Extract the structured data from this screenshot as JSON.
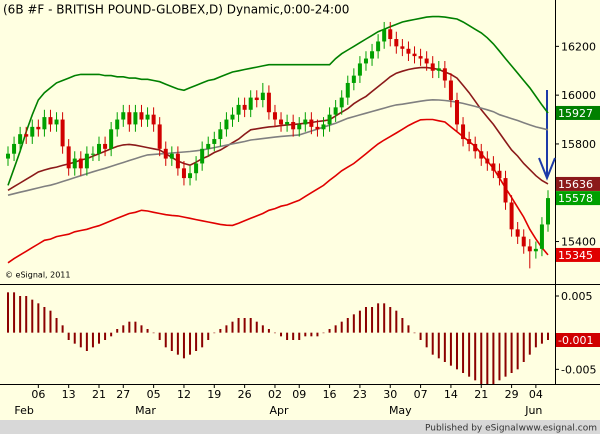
{
  "chart_data": [
    {
      "type": "candlestick",
      "title": "(6B #F - BRITISH POUND-GLOBEX,D) Dynamic,0:00-24:00",
      "watermark": "© eSignal, 2011",
      "categories": [
        null,
        null,
        null,
        null,
        null,
        "06",
        null,
        null,
        null,
        null,
        "13",
        null,
        null,
        null,
        null,
        "21",
        null,
        null,
        null,
        "27",
        null,
        null,
        null,
        null,
        "05",
        null,
        null,
        null,
        null,
        "12",
        null,
        null,
        null,
        null,
        "19",
        null,
        null,
        null,
        null,
        "26",
        null,
        null,
        null,
        null,
        "02",
        null,
        null,
        null,
        "09",
        null,
        null,
        null,
        null,
        "16",
        null,
        null,
        null,
        null,
        "23",
        null,
        null,
        null,
        null,
        "30",
        null,
        null,
        null,
        null,
        "07",
        null,
        null,
        null,
        null,
        "14",
        null,
        null,
        null,
        null,
        "21",
        null,
        null,
        null,
        null,
        "29",
        null,
        null,
        null,
        "04",
        null,
        null
      ],
      "month_categories": [
        null,
        null,
        "Feb",
        null,
        null,
        null,
        null,
        null,
        null,
        null,
        null,
        null,
        null,
        null,
        null,
        null,
        null,
        null,
        null,
        null,
        null,
        null,
        "Mar",
        null,
        null,
        null,
        null,
        null,
        null,
        null,
        null,
        null,
        null,
        null,
        null,
        null,
        null,
        null,
        null,
        null,
        null,
        null,
        null,
        null,
        "Apr",
        null,
        null,
        null,
        null,
        null,
        null,
        null,
        null,
        null,
        null,
        null,
        null,
        null,
        null,
        null,
        null,
        null,
        null,
        null,
        "May",
        null,
        null,
        null,
        null,
        null,
        null,
        null,
        null,
        null,
        null,
        null,
        null,
        null,
        null,
        null,
        null,
        null,
        null,
        null,
        null,
        null,
        "Jun",
        null,
        null,
        null
      ],
      "open": [
        15740,
        15760,
        15800,
        15840,
        15830,
        15870,
        15860,
        15910,
        15880,
        15900,
        15790,
        15700,
        15740,
        15700,
        15760,
        15760,
        15800,
        15780,
        15860,
        15900,
        15930,
        15880,
        15930,
        15900,
        15920,
        15880,
        15780,
        15740,
        15760,
        15700,
        15660,
        15680,
        15720,
        15780,
        15800,
        15820,
        15860,
        15900,
        15920,
        15960,
        15940,
        15990,
        15980,
        16010,
        15930,
        15900,
        15880,
        15890,
        15860,
        15880,
        15900,
        15870,
        15860,
        15880,
        15920,
        15950,
        15990,
        16050,
        16080,
        16130,
        16150,
        16180,
        16220,
        16270,
        16230,
        16200,
        16190,
        16170,
        16160,
        16150,
        16130,
        16100,
        16110,
        16060,
        15980,
        15880,
        15820,
        15800,
        15770,
        15740,
        15720,
        15690,
        15660,
        15560,
        15450,
        15420,
        15380,
        15360,
        15370,
        15470
      ],
      "high": [
        15790,
        15830,
        15870,
        15870,
        15900,
        15900,
        15940,
        15940,
        15930,
        15930,
        15820,
        15770,
        15770,
        15790,
        15790,
        15830,
        15830,
        15890,
        15930,
        15960,
        15960,
        15960,
        15960,
        15950,
        15950,
        15910,
        15810,
        15790,
        15790,
        15730,
        15710,
        15750,
        15810,
        15830,
        15850,
        15890,
        15930,
        15950,
        15990,
        15990,
        16020,
        16020,
        16050,
        16040,
        15960,
        15930,
        15920,
        15920,
        15910,
        15930,
        15930,
        15900,
        15910,
        15950,
        15980,
        16020,
        16080,
        16110,
        16160,
        16180,
        16210,
        16250,
        16300,
        16300,
        16260,
        16230,
        16220,
        16200,
        16190,
        16180,
        16160,
        16140,
        16140,
        16090,
        16010,
        15910,
        15850,
        15830,
        15800,
        15770,
        15750,
        15720,
        15690,
        15590,
        15480,
        15450,
        15410,
        15400,
        15500,
        15610
      ],
      "low": [
        15710,
        15730,
        15770,
        15800,
        15800,
        15830,
        15830,
        15850,
        15850,
        15760,
        15670,
        15670,
        15670,
        15670,
        15730,
        15730,
        15750,
        15750,
        15830,
        15870,
        15850,
        15850,
        15870,
        15870,
        15850,
        15750,
        15710,
        15710,
        15670,
        15630,
        15630,
        15650,
        15690,
        15750,
        15770,
        15790,
        15830,
        15870,
        15890,
        15910,
        15910,
        15950,
        15950,
        15900,
        15870,
        15850,
        15850,
        15830,
        15830,
        15850,
        15840,
        15830,
        15830,
        15850,
        15890,
        15920,
        15960,
        16020,
        16050,
        16100,
        16120,
        16150,
        16190,
        16200,
        16170,
        16160,
        16140,
        16130,
        16120,
        16100,
        16070,
        16070,
        16030,
        15950,
        15850,
        15790,
        15770,
        15740,
        15710,
        15690,
        15660,
        15630,
        15530,
        15420,
        15390,
        15350,
        15290,
        15330,
        15340,
        15440
      ],
      "close": [
        15760,
        15800,
        15840,
        15830,
        15870,
        15860,
        15910,
        15880,
        15900,
        15790,
        15700,
        15740,
        15700,
        15760,
        15760,
        15800,
        15780,
        15860,
        15900,
        15930,
        15880,
        15930,
        15900,
        15920,
        15880,
        15780,
        15740,
        15760,
        15700,
        15660,
        15680,
        15720,
        15780,
        15800,
        15820,
        15860,
        15900,
        15920,
        15960,
        15940,
        15990,
        15980,
        16010,
        15930,
        15900,
        15880,
        15890,
        15860,
        15880,
        15900,
        15870,
        15860,
        15880,
        15920,
        15950,
        15990,
        16050,
        16080,
        16130,
        16150,
        16180,
        16220,
        16270,
        16230,
        16200,
        16190,
        16170,
        16160,
        16150,
        16130,
        16100,
        16110,
        16060,
        15980,
        15880,
        15820,
        15800,
        15770,
        15740,
        15720,
        15690,
        15660,
        15560,
        15450,
        15420,
        15380,
        15360,
        15370,
        15470,
        15578
      ],
      "up_color": "#00a000",
      "down_color": "#d00000",
      "series": [
        {
          "color": "#008000",
          "values": [
            15630,
            15700,
            15770,
            15850,
            15920,
            15980,
            16010,
            16030,
            16050,
            16060,
            16070,
            16080,
            16085,
            16085,
            16085,
            16085,
            16080,
            16080,
            16075,
            16075,
            16070,
            16070,
            16065,
            16065,
            16060,
            16055,
            16045,
            16035,
            16025,
            16020,
            16030,
            16040,
            16050,
            16060,
            16065,
            16075,
            16085,
            16095,
            16100,
            16105,
            16110,
            16115,
            16120,
            16125,
            16125,
            16125,
            16125,
            16125,
            16125,
            16125,
            16125,
            16125,
            16125,
            16125,
            16150,
            16170,
            16185,
            16200,
            16215,
            16230,
            16245,
            16260,
            16270,
            16280,
            16290,
            16300,
            16305,
            16310,
            16315,
            16320,
            16322,
            16322,
            16320,
            16316,
            16312,
            16300,
            16285,
            16270,
            16255,
            16235,
            16210,
            16180,
            16150,
            16120,
            16090,
            16060,
            16030,
            15995,
            15960,
            15927
          ]
        },
        {
          "color": "#e00000",
          "values": [
            15313,
            15330,
            15345,
            15360,
            15375,
            15390,
            15405,
            15410,
            15420,
            15425,
            15430,
            15440,
            15445,
            15450,
            15458,
            15465,
            15475,
            15485,
            15495,
            15505,
            15515,
            15520,
            15528,
            15525,
            15520,
            15515,
            15510,
            15507,
            15505,
            15500,
            15495,
            15490,
            15485,
            15480,
            15475,
            15470,
            15467,
            15466,
            15475,
            15485,
            15495,
            15505,
            15515,
            15528,
            15535,
            15545,
            15550,
            15560,
            15569,
            15585,
            15600,
            15615,
            15630,
            15651,
            15670,
            15690,
            15705,
            15720,
            15740,
            15760,
            15780,
            15800,
            15816,
            15830,
            15845,
            15860,
            15875,
            15888,
            15899,
            15900,
            15900,
            15895,
            15890,
            15870,
            15850,
            15830,
            15810,
            15790,
            15760,
            15730,
            15700,
            15660,
            15620,
            15580,
            15540,
            15500,
            15450,
            15410,
            15375,
            15345
          ]
        },
        {
          "color": "#8b1a1a",
          "values": [
            15610,
            15625,
            15640,
            15655,
            15670,
            15685,
            15693,
            15700,
            15705,
            15712,
            15718,
            15725,
            15734,
            15740,
            15750,
            15760,
            15770,
            15780,
            15790,
            15796,
            15798,
            15795,
            15790,
            15785,
            15780,
            15775,
            15760,
            15745,
            15730,
            15720,
            15713,
            15725,
            15740,
            15750,
            15765,
            15775,
            15790,
            15805,
            15820,
            15840,
            15858,
            15862,
            15866,
            15870,
            15872,
            15875,
            15878,
            15880,
            15882,
            15885,
            15888,
            15892,
            15895,
            15899,
            15915,
            15930,
            15945,
            15965,
            15981,
            15995,
            16015,
            16035,
            16055,
            16075,
            16090,
            16098,
            16105,
            16110,
            16113,
            16113,
            16110,
            16105,
            16095,
            16085,
            16070,
            16040,
            16010,
            15975,
            15940,
            15910,
            15880,
            15845,
            15810,
            15775,
            15750,
            15720,
            15695,
            15670,
            15650,
            15636
          ]
        },
        {
          "color": "#808080",
          "show_last": false,
          "values": [
            15590,
            15596,
            15602,
            15608,
            15614,
            15620,
            15626,
            15631,
            15638,
            15646,
            15654,
            15662,
            15670,
            15678,
            15686,
            15693,
            15700,
            15708,
            15716,
            15724,
            15732,
            15740,
            15748,
            15755,
            15757,
            15759,
            15761,
            15763,
            15765,
            15767,
            15769,
            15772,
            15775,
            15780,
            15785,
            15790,
            15795,
            15800,
            15805,
            15810,
            15816,
            15819,
            15822,
            15825,
            15828,
            15831,
            15833,
            15835,
            15837,
            15845,
            15853,
            15861,
            15869,
            15877,
            15885,
            15895,
            15905,
            15912,
            15919,
            15926,
            15933,
            15940,
            15947,
            15954,
            15960,
            15963,
            15967,
            15971,
            15975,
            15979,
            15981,
            15980,
            15978,
            15975,
            15971,
            15966,
            15960,
            15954,
            15947,
            15940,
            15932,
            15920,
            15912,
            15904,
            15896,
            15887,
            15878,
            15870,
            15864,
            15858
          ]
        }
      ],
      "ylim": [
        15230,
        16390
      ],
      "yticks": [
        15400,
        15800,
        16000,
        16200
      ]
    },
    {
      "type": "bar",
      "color": "#8b0000",
      "last_label_color": "#d00000",
      "values": [
        0.0055,
        0.0055,
        0.005,
        0.005,
        0.0045,
        0.004,
        0.0035,
        0.003,
        0.002,
        0.001,
        -0.001,
        -0.0015,
        -0.002,
        -0.0025,
        -0.002,
        -0.0015,
        -0.001,
        -0.0005,
        0.0005,
        0.001,
        0.0015,
        0.0015,
        0.001,
        0.0005,
        0,
        -0.001,
        -0.002,
        -0.0025,
        -0.003,
        -0.0035,
        -0.003,
        -0.0025,
        -0.002,
        -0.001,
        0,
        0.0005,
        0.001,
        0.0015,
        0.002,
        0.002,
        0.002,
        0.0015,
        0.001,
        0.0005,
        0,
        -0.0005,
        -0.001,
        -0.001,
        -0.001,
        -0.0005,
        -0.0005,
        -0.0005,
        0,
        0.0005,
        0.001,
        0.0015,
        0.002,
        0.0025,
        0.003,
        0.0035,
        0.0035,
        0.004,
        0.004,
        0.0035,
        0.003,
        0.002,
        0.001,
        0,
        -0.001,
        -0.002,
        -0.003,
        -0.0035,
        -0.004,
        -0.0045,
        -0.005,
        -0.0055,
        -0.006,
        -0.0065,
        -0.007,
        -0.007,
        -0.007,
        -0.0065,
        -0.006,
        -0.0055,
        -0.005,
        -0.004,
        -0.003,
        -0.002,
        -0.0015,
        -0.001
      ],
      "ylim": [
        -0.007,
        0.0065
      ],
      "yticks": [
        -0.005,
        0.005
      ]
    }
  ],
  "footer": {
    "publisher": "Published by eSignal",
    "url": "www.esignal.com"
  }
}
